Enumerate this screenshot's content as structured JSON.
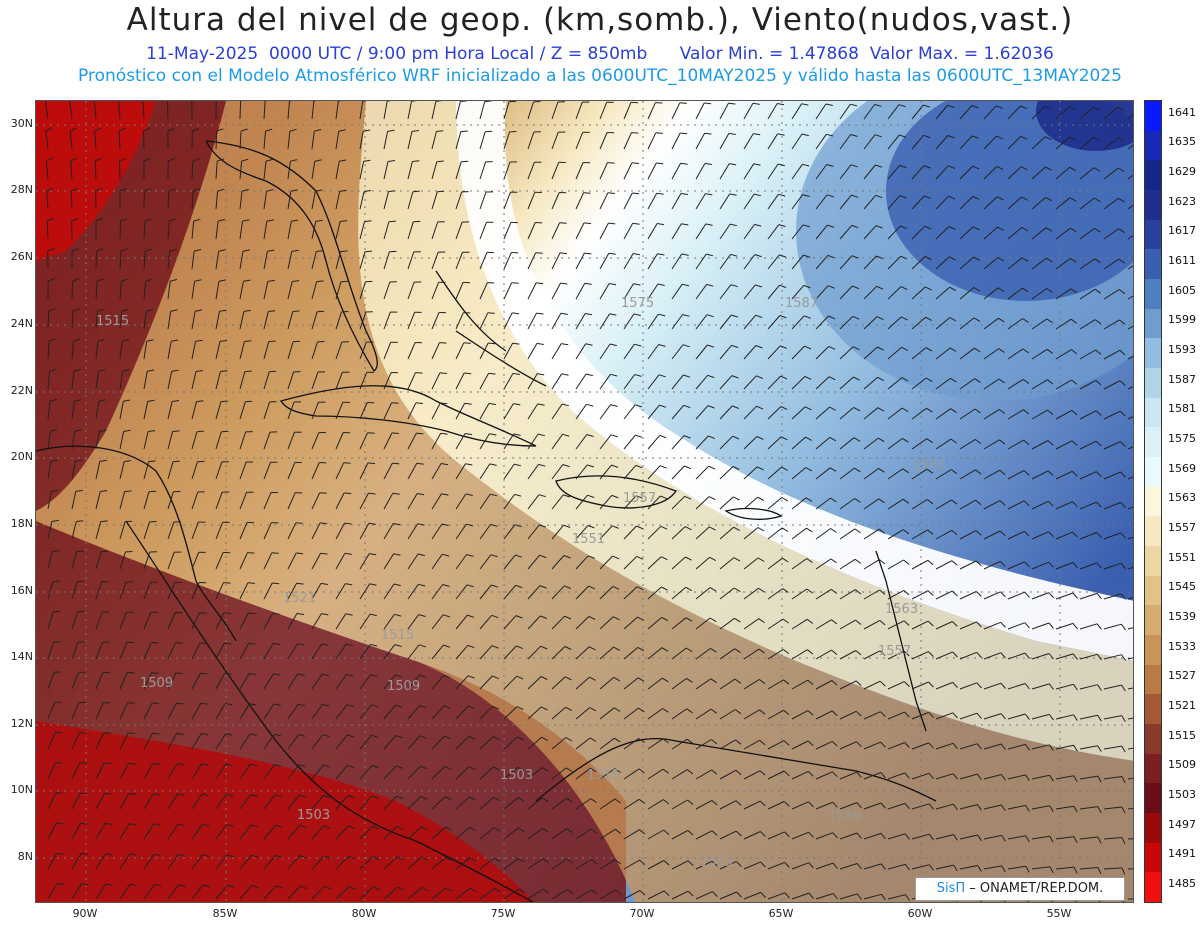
{
  "header": {
    "title": "Altura del nivel de geop. (km,somb.), Viento(nudos,vast.)",
    "subtitle_left": "11-May-2025  0000 UTC / 9:00 pm Hora Local / Z = 850mb",
    "subtitle_right": "Valor Min. = 1.47868  Valor Max. = 1.62036",
    "subtitle2": "Pronóstico con el Modelo Atmosférico WRF inicializado a las 0600UTC_10MAY2025 y válido hasta las  0600UTC_13MAY2025"
  },
  "axes": {
    "lat_labels": [
      "30N",
      "28N",
      "26N",
      "24N",
      "22N",
      "20N",
      "18N",
      "16N",
      "14N",
      "12N",
      "10N",
      "8N"
    ],
    "lon_labels": [
      "90W",
      "85W",
      "80W",
      "75W",
      "70W",
      "65W",
      "60W",
      "55W"
    ]
  },
  "colorbar": {
    "labels": [
      "1641",
      "1635",
      "1629",
      "1623",
      "1617",
      "1611",
      "1605",
      "1599",
      "1593",
      "1587",
      "1581",
      "1575",
      "1569",
      "1563",
      "1557",
      "1551",
      "1545",
      "1539",
      "1533",
      "1527",
      "1521",
      "1515",
      "1509",
      "1503",
      "1497",
      "1491",
      "1485"
    ],
    "colors": [
      "#0a1aff",
      "#1a2ab8",
      "#14288a",
      "#1e2f8c",
      "#28429e",
      "#3a5fb0",
      "#4f7fc0",
      "#6f9dd0",
      "#93bde0",
      "#b1d4ea",
      "#c9e6f2",
      "#d9f1f7",
      "#e9fafc",
      "#fbf6dc",
      "#f6e8c0",
      "#ecd6a2",
      "#e2c289",
      "#d6ad70",
      "#c99458",
      "#b97b44",
      "#a45a36",
      "#8a3a2a",
      "#7a1f22",
      "#680e17",
      "#9a0a0a",
      "#c80808",
      "#f01010"
    ]
  },
  "contour_labels": [
    "1515",
    "1575",
    "1587",
    "1581",
    "1557",
    "1551",
    "1521",
    "1515",
    "1509",
    "1509",
    "1503",
    "1515",
    "1503",
    "1563",
    "1557",
    "1539",
    "1533"
  ],
  "credit": {
    "brand": "SisΠ",
    "text": " – ONAMET/REP.DOM."
  }
}
